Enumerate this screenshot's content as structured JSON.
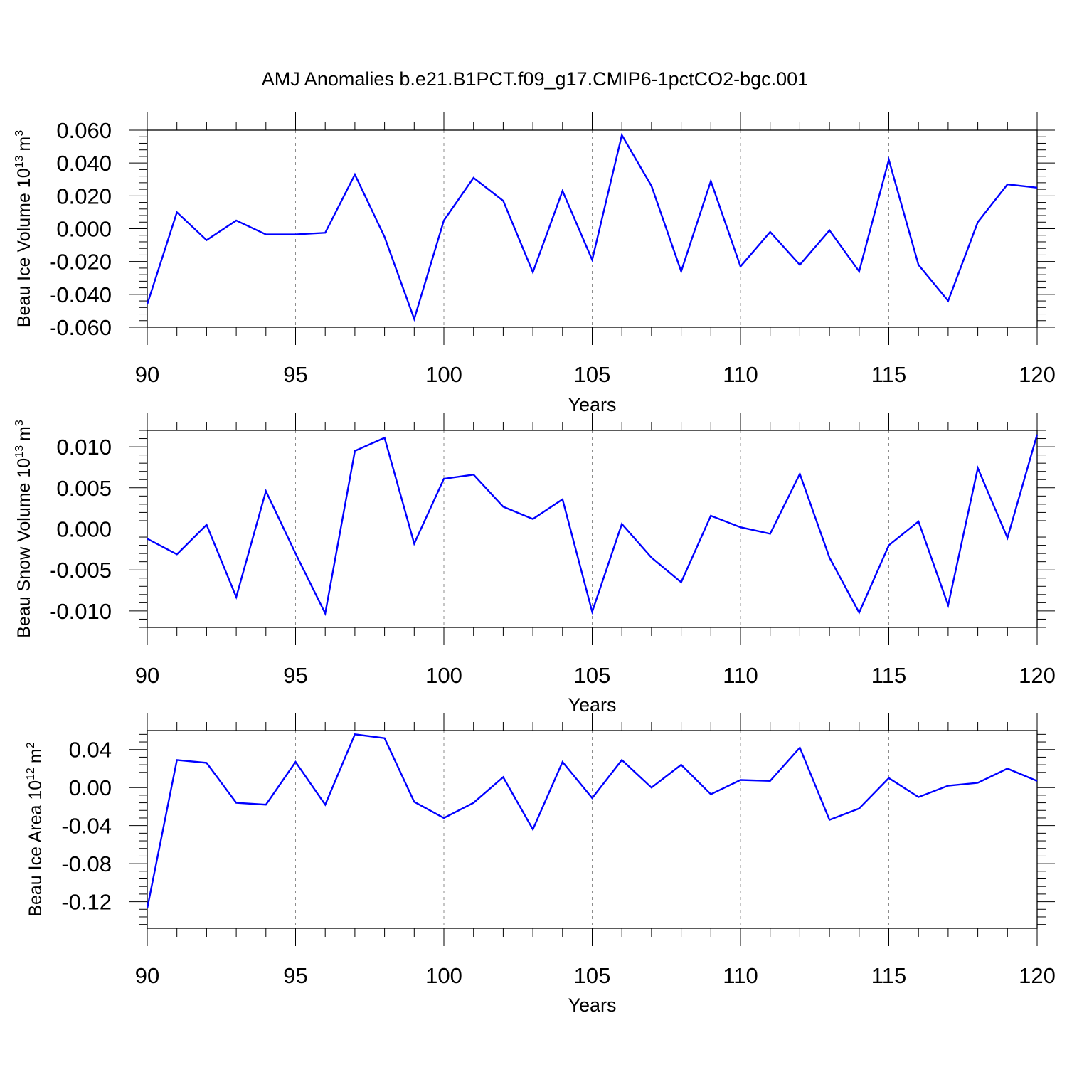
{
  "title": "AMJ Anomalies b.e21.B1PCT.f09_g17.CMIP6-1pctCO2-bgc.001",
  "colors": {
    "line": "#0000ff",
    "frame": "#000000",
    "grid": "#8c8c8c"
  },
  "chart_data": [
    {
      "type": "line",
      "ylabel_main": "Beau Ice Volume 10",
      "ylabel_exp": "13",
      "ylabel_unit": "m",
      "ylabel_unit_exp": "3",
      "xlabel": "Years",
      "xlim": [
        90,
        120
      ],
      "ylim": [
        -0.06,
        0.06
      ],
      "xticks": [
        90,
        95,
        100,
        105,
        110,
        115,
        120
      ],
      "yticks": [
        -0.06,
        -0.04,
        -0.02,
        0.0,
        0.02,
        0.04,
        0.06
      ],
      "ytick_labels": [
        "-0.060",
        "-0.040",
        "-0.020",
        "0.000",
        "0.020",
        "0.040",
        "0.060"
      ],
      "grid": "dashed vertical at major x ticks",
      "x": [
        90,
        91,
        92,
        93,
        94,
        95,
        96,
        97,
        98,
        99,
        100,
        101,
        102,
        103,
        104,
        105,
        106,
        107,
        108,
        109,
        110,
        111,
        112,
        113,
        114,
        115,
        116,
        117,
        118,
        119,
        120
      ],
      "series": [
        {
          "values": [
            -0.046,
            0.01,
            -0.007,
            0.005,
            -0.0035,
            -0.0035,
            -0.0025,
            0.033,
            -0.005,
            -0.055,
            0.005,
            0.031,
            0.017,
            -0.0265,
            0.023,
            -0.019,
            0.057,
            0.026,
            -0.026,
            0.029,
            -0.023,
            -0.002,
            -0.022,
            -0.001,
            -0.026,
            0.042,
            -0.022,
            -0.044,
            0.004,
            0.027,
            0.025
          ]
        }
      ]
    },
    {
      "type": "line",
      "ylabel_main": "Beau Snow Volume 10",
      "ylabel_exp": "13",
      "ylabel_unit": "m",
      "ylabel_unit_exp": "3",
      "xlabel": "Years",
      "xlim": [
        90,
        120
      ],
      "ylim": [
        -0.012,
        0.012
      ],
      "xticks": [
        90,
        95,
        100,
        105,
        110,
        115,
        120
      ],
      "yticks": [
        -0.01,
        -0.005,
        0.0,
        0.005,
        0.01
      ],
      "ytick_labels": [
        "-0.010",
        "-0.005",
        "0.000",
        "0.005",
        "0.010"
      ],
      "grid": "dashed vertical at major x ticks",
      "x": [
        90,
        91,
        92,
        93,
        94,
        95,
        96,
        97,
        98,
        99,
        100,
        101,
        102,
        103,
        104,
        105,
        106,
        107,
        108,
        109,
        110,
        111,
        112,
        113,
        114,
        115,
        116,
        117,
        118,
        119,
        120
      ],
      "series": [
        {
          "values": [
            -0.0012,
            -0.0031,
            0.0005,
            -0.0083,
            0.0046,
            -0.003,
            -0.0103,
            0.0095,
            0.0111,
            -0.0018,
            0.0061,
            0.0066,
            0.0027,
            0.0012,
            0.0036,
            -0.0101,
            0.0006,
            -0.0035,
            -0.0065,
            0.0016,
            0.0002,
            -0.0006,
            0.0067,
            -0.0035,
            -0.0102,
            -0.002,
            0.0009,
            -0.0093,
            0.0074,
            -0.0011,
            0.0115
          ]
        }
      ]
    },
    {
      "type": "line",
      "ylabel_main": "Beau Ice Area 10",
      "ylabel_exp": "12",
      "ylabel_unit": "m",
      "ylabel_unit_exp": "2",
      "xlabel": "Years",
      "xlim": [
        90,
        120
      ],
      "ylim": [
        -0.148,
        0.06
      ],
      "xticks": [
        90,
        95,
        100,
        105,
        110,
        115,
        120
      ],
      "yticks": [
        -0.12,
        -0.08,
        -0.04,
        0.0,
        0.04
      ],
      "ytick_labels": [
        "-0.12",
        "-0.08",
        "-0.04",
        "0.00",
        "0.04"
      ],
      "grid": "dashed vertical at major x ticks",
      "x": [
        90,
        91,
        92,
        93,
        94,
        95,
        96,
        97,
        98,
        99,
        100,
        101,
        102,
        103,
        104,
        105,
        106,
        107,
        108,
        109,
        110,
        111,
        112,
        113,
        114,
        115,
        116,
        117,
        118,
        119,
        120
      ],
      "series": [
        {
          "values": [
            -0.127,
            0.029,
            0.026,
            -0.016,
            -0.018,
            0.027,
            -0.018,
            0.056,
            0.052,
            -0.015,
            -0.032,
            -0.016,
            0.011,
            -0.044,
            0.027,
            -0.011,
            0.029,
            0.0,
            0.024,
            -0.007,
            0.008,
            0.007,
            0.042,
            -0.034,
            -0.022,
            0.01,
            -0.01,
            0.002,
            0.005,
            0.02,
            0.007
          ]
        }
      ]
    }
  ]
}
